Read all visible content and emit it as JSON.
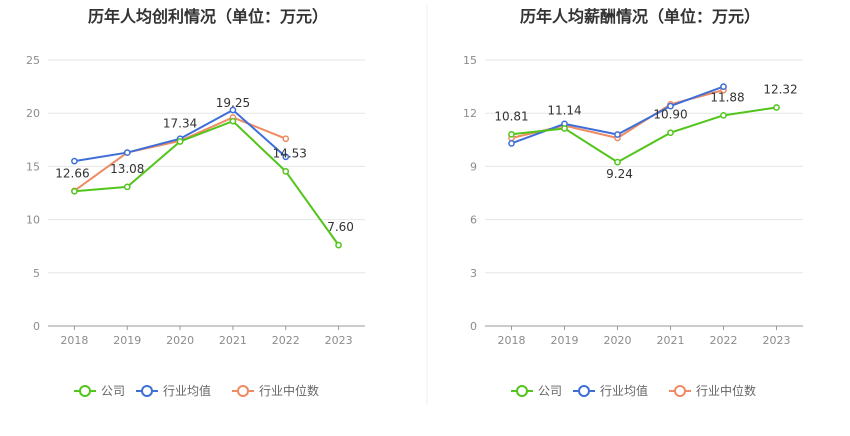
{
  "colors": {
    "company": "#52c41a",
    "industry_avg": "#3e6fd8",
    "industry_median": "#ef8a62",
    "grid": "#e6e6e6",
    "axis": "#999999",
    "divider": "#eeeeee"
  },
  "legend": [
    "公司",
    "行业均值",
    "行业中位数"
  ],
  "chart_data": [
    {
      "type": "line",
      "title": "历年人均创利情况（单位：万元）",
      "categories": [
        "2018",
        "2019",
        "2020",
        "2021",
        "2022",
        "2023"
      ],
      "ylim": [
        0,
        25
      ],
      "yticks": [
        "0",
        "5",
        "10",
        "15",
        "20",
        "25"
      ],
      "grid": true,
      "legend_position": "bottom",
      "series": [
        {
          "name": "公司",
          "values": [
            12.66,
            13.08,
            17.34,
            19.25,
            14.53,
            7.6
          ],
          "labels": [
            "12.66",
            "13.08",
            "17.34",
            "19.25",
            "14.53",
            "7.60"
          ]
        },
        {
          "name": "行业均值",
          "values": [
            15.5,
            16.3,
            17.6,
            20.3,
            15.9,
            null
          ]
        },
        {
          "name": "行业中位数",
          "values": [
            12.7,
            16.3,
            17.4,
            19.6,
            17.6,
            null
          ]
        }
      ]
    },
    {
      "type": "line",
      "title": "历年人均薪酬情况（单位：万元）",
      "categories": [
        "2018",
        "2019",
        "2020",
        "2021",
        "2022",
        "2023"
      ],
      "ylim": [
        0,
        15
      ],
      "yticks": [
        "0",
        "3",
        "6",
        "9",
        "12",
        "15"
      ],
      "grid": true,
      "legend_position": "bottom",
      "series": [
        {
          "name": "公司",
          "values": [
            10.81,
            11.14,
            9.24,
            10.9,
            11.88,
            12.32
          ],
          "labels": [
            "10.81",
            "11.14",
            "9.24",
            "10.90",
            "11.88",
            "12.32"
          ]
        },
        {
          "name": "行业均值",
          "values": [
            10.3,
            11.4,
            10.8,
            12.4,
            13.5,
            null
          ]
        },
        {
          "name": "行业中位数",
          "values": [
            10.6,
            11.3,
            10.6,
            12.5,
            13.3,
            null
          ]
        }
      ]
    }
  ]
}
